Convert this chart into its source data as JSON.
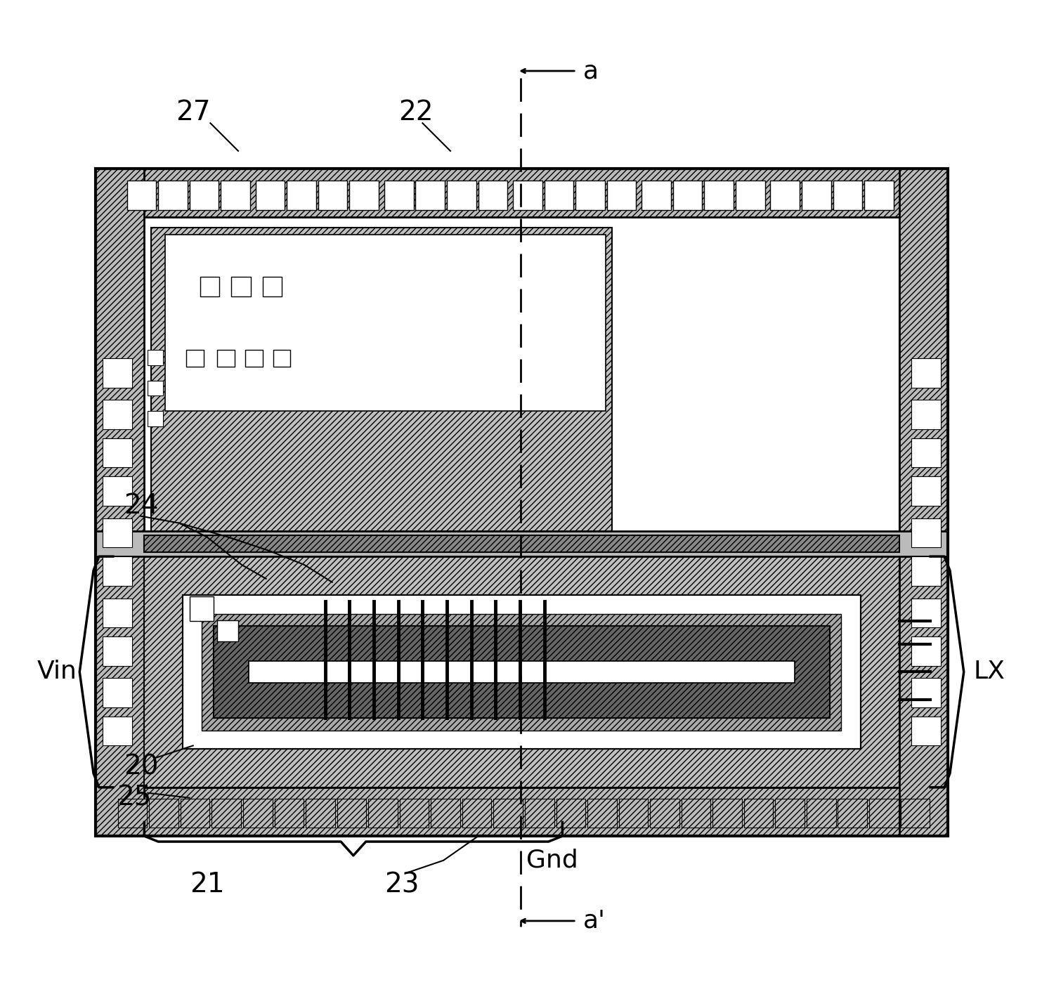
{
  "fig_width": 14.83,
  "fig_height": 14.05,
  "bg_color": "#ffffff",
  "labels": {
    "a_top": "a",
    "a_bottom": "a'",
    "label_27": "27",
    "label_22": "22",
    "label_24": "24",
    "label_20": "20",
    "label_25": "25",
    "label_21": "21",
    "label_23": "23",
    "label_Gnd": "Gnd",
    "label_Vin": "Vin",
    "label_LX": "LX"
  }
}
